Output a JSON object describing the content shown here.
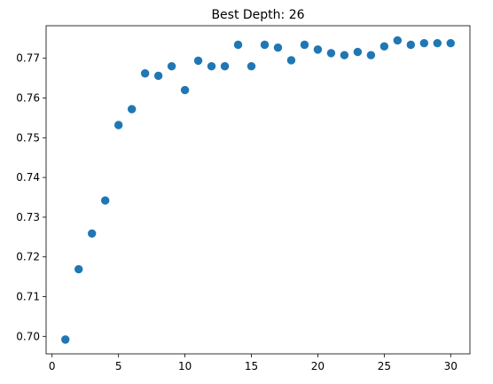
{
  "chart_data": {
    "type": "scatter",
    "title": "Best Depth: 26",
    "xlabel": "",
    "ylabel": "",
    "xlim": [
      -0.45,
      31.45
    ],
    "ylim": [
      0.6956,
      0.7782
    ],
    "xticks": [
      0,
      5,
      10,
      15,
      20,
      25,
      30
    ],
    "xtick_labels": [
      "0",
      "5",
      "10",
      "15",
      "20",
      "25",
      "30"
    ],
    "yticks": [
      0.7,
      0.71,
      0.72,
      0.73,
      0.74,
      0.75,
      0.76,
      0.77
    ],
    "ytick_labels": [
      "0.70",
      "0.71",
      "0.72",
      "0.73",
      "0.74",
      "0.75",
      "0.76",
      "0.77"
    ],
    "grid": false,
    "marker_color": "#1f77b4",
    "x": [
      1,
      2,
      3,
      4,
      5,
      6,
      7,
      8,
      9,
      10,
      11,
      12,
      13,
      14,
      15,
      16,
      17,
      18,
      19,
      20,
      21,
      22,
      23,
      24,
      25,
      26,
      27,
      28,
      29,
      30
    ],
    "y": [
      0.6992,
      0.7169,
      0.7259,
      0.7342,
      0.7532,
      0.7572,
      0.7662,
      0.7656,
      0.768,
      0.762,
      0.7694,
      0.768,
      0.768,
      0.7734,
      0.768,
      0.7734,
      0.7727,
      0.7695,
      0.7734,
      0.7722,
      0.7713,
      0.7708,
      0.7716,
      0.7708,
      0.773,
      0.7745,
      0.7734,
      0.7738,
      0.7738,
      0.7738
    ]
  }
}
